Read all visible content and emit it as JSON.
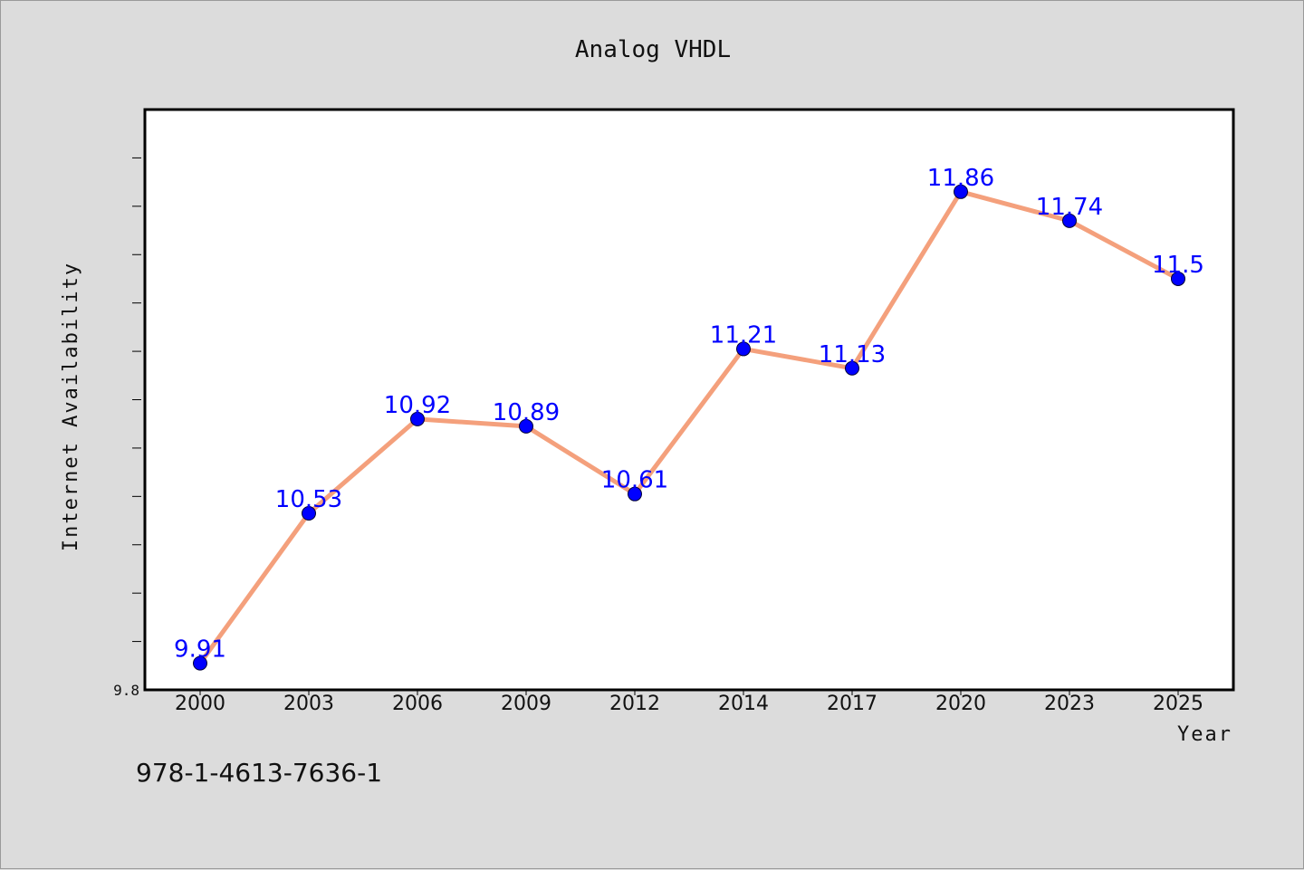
{
  "chart_data": {
    "type": "line",
    "title": "Analog VHDL",
    "xlabel": "Year",
    "ylabel": "Internet Availability",
    "categories": [
      "2000",
      "2003",
      "2006",
      "2009",
      "2012",
      "2014",
      "2017",
      "2020",
      "2023",
      "2025"
    ],
    "series": [
      {
        "values": [
          9.91,
          10.53,
          10.92,
          10.89,
          10.61,
          11.21,
          11.13,
          11.86,
          11.74,
          11.5
        ]
      }
    ],
    "ylim": [
      9.8,
      12.2
    ],
    "ytick_labels": [
      "9.8"
    ],
    "grid": false,
    "line_color": "#f4a07c",
    "marker_color": "#0000ff",
    "label_color": "#0000ff"
  },
  "footer": {
    "code": "978-1-4613-7636-1"
  }
}
